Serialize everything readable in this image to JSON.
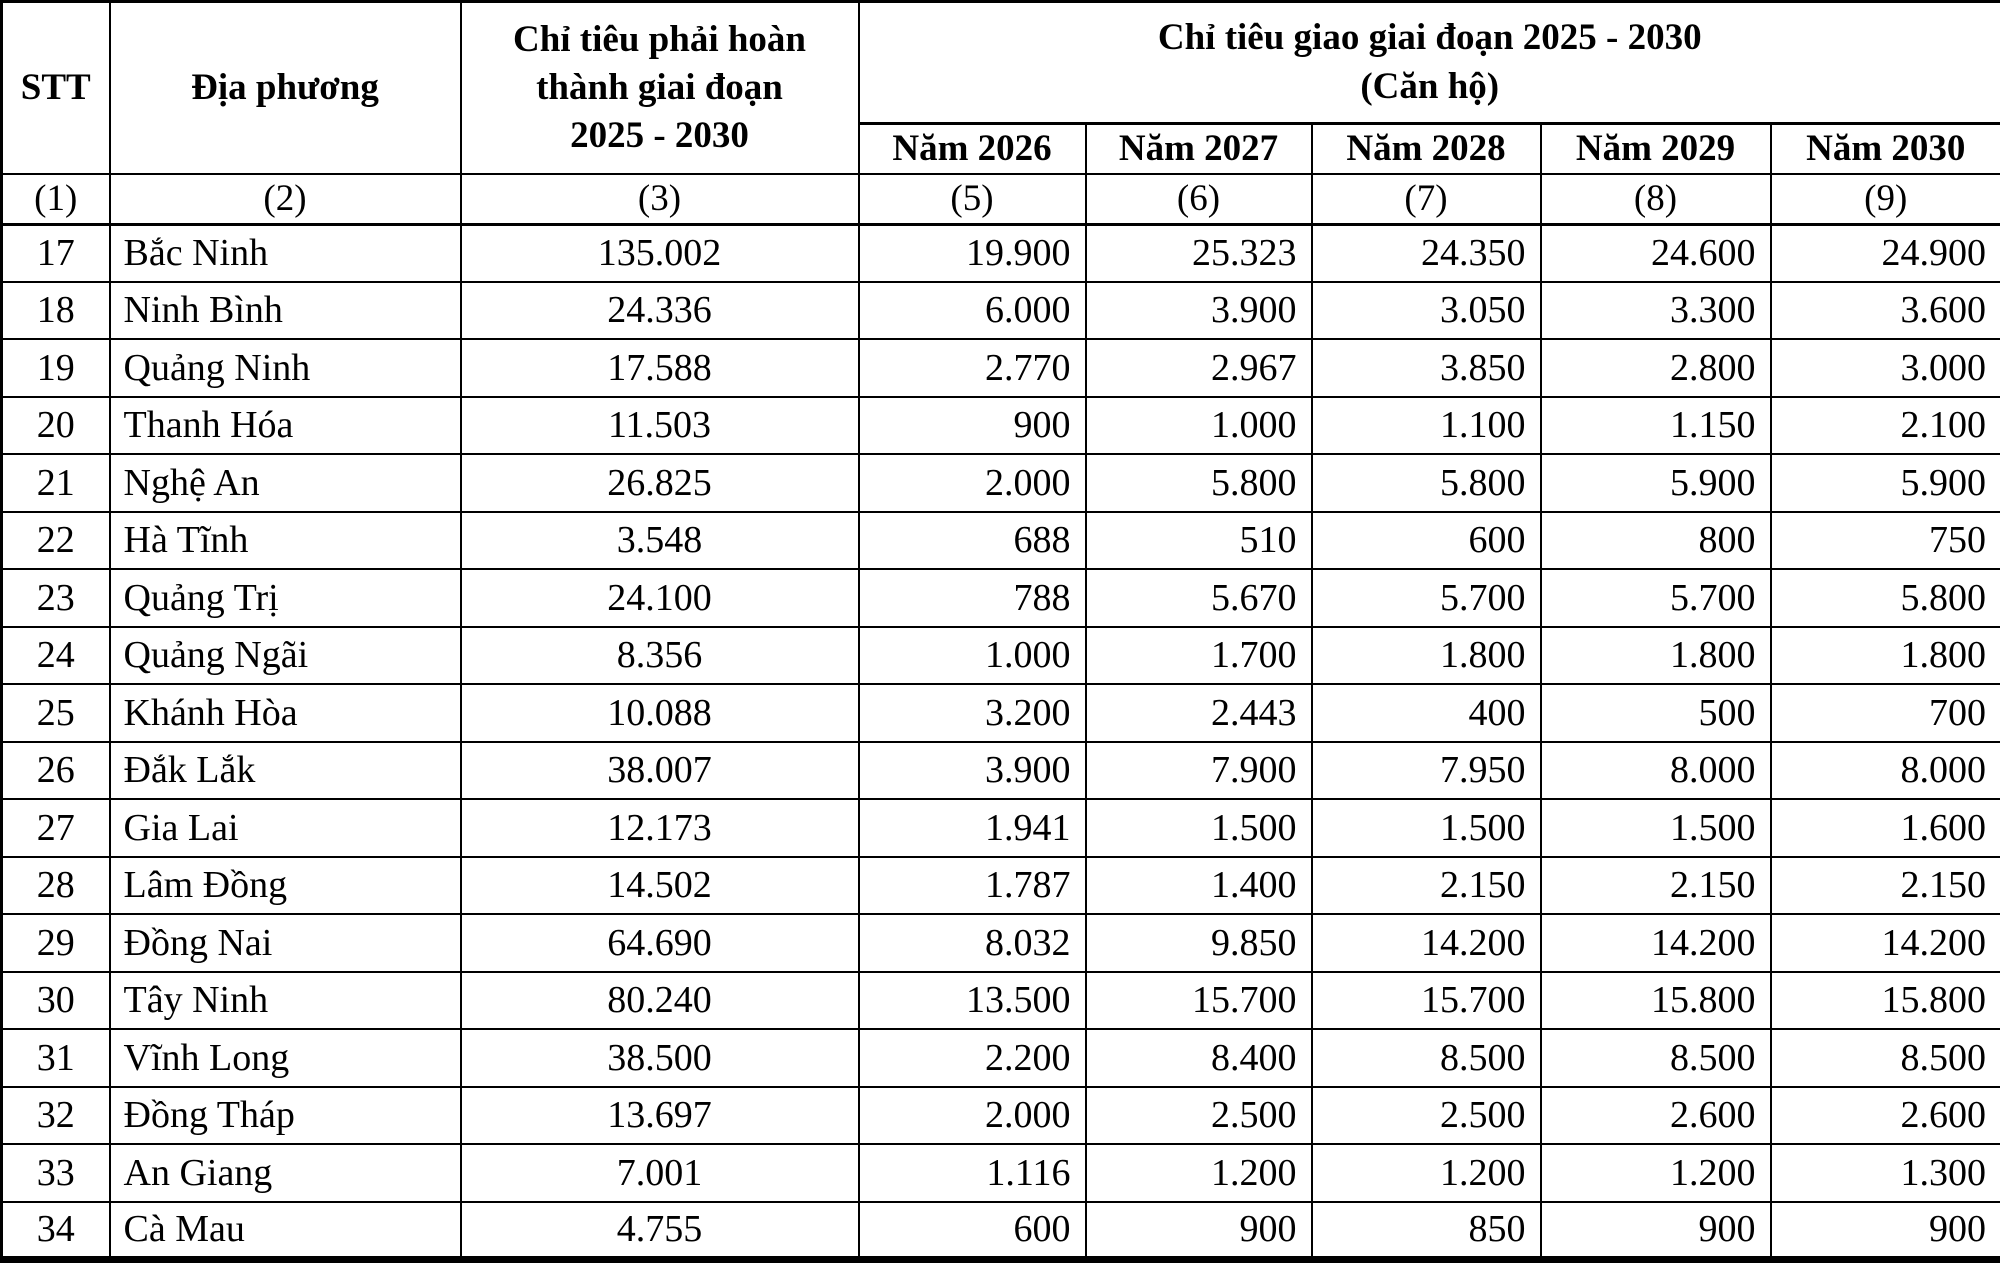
{
  "colors": {
    "border": "#000000",
    "background": "#ffffff",
    "text": "#000000"
  },
  "table": {
    "headers": {
      "stt": "STT",
      "locality": "Địa phương",
      "target_complete_lines": [
        "Chỉ tiêu phải hoàn",
        "thành giai đoạn",
        "2025 - 2030"
      ],
      "target_assigned": "Chỉ tiêu giao giai đoạn 2025 - 2030",
      "target_assigned_unit": "(Căn hộ)",
      "years": [
        "Năm 2026",
        "Năm 2027",
        "Năm 2028",
        "Năm 2029",
        "Năm 2030"
      ],
      "index_row": [
        "(1)",
        "(2)",
        "(3)",
        "(5)",
        "(6)",
        "(7)",
        "(8)",
        "(9)"
      ]
    },
    "rows": [
      {
        "stt": "17",
        "locality": "Bắc Ninh",
        "total": "135.002",
        "values": [
          "19.900",
          "25.323",
          "24.350",
          "24.600",
          "24.900"
        ]
      },
      {
        "stt": "18",
        "locality": "Ninh Bình",
        "total": "24.336",
        "values": [
          "6.000",
          "3.900",
          "3.050",
          "3.300",
          "3.600"
        ]
      },
      {
        "stt": "19",
        "locality": "Quảng Ninh",
        "total": "17.588",
        "values": [
          "2.770",
          "2.967",
          "3.850",
          "2.800",
          "3.000"
        ]
      },
      {
        "stt": "20",
        "locality": "Thanh Hóa",
        "total": "11.503",
        "values": [
          "900",
          "1.000",
          "1.100",
          "1.150",
          "2.100"
        ]
      },
      {
        "stt": "21",
        "locality": "Nghệ An",
        "total": "26.825",
        "values": [
          "2.000",
          "5.800",
          "5.800",
          "5.900",
          "5.900"
        ]
      },
      {
        "stt": "22",
        "locality": "Hà Tĩnh",
        "total": "3.548",
        "values": [
          "688",
          "510",
          "600",
          "800",
          "750"
        ]
      },
      {
        "stt": "23",
        "locality": "Quảng Trị",
        "total": "24.100",
        "values": [
          "788",
          "5.670",
          "5.700",
          "5.700",
          "5.800"
        ]
      },
      {
        "stt": "24",
        "locality": "Quảng Ngãi",
        "total": "8.356",
        "values": [
          "1.000",
          "1.700",
          "1.800",
          "1.800",
          "1.800"
        ]
      },
      {
        "stt": "25",
        "locality": "Khánh Hòa",
        "total": "10.088",
        "values": [
          "3.200",
          "2.443",
          "400",
          "500",
          "700"
        ]
      },
      {
        "stt": "26",
        "locality": "Đắk Lắk",
        "total": "38.007",
        "values": [
          "3.900",
          "7.900",
          "7.950",
          "8.000",
          "8.000"
        ]
      },
      {
        "stt": "27",
        "locality": "Gia Lai",
        "total": "12.173",
        "values": [
          "1.941",
          "1.500",
          "1.500",
          "1.500",
          "1.600"
        ]
      },
      {
        "stt": "28",
        "locality": "Lâm Đồng",
        "total": "14.502",
        "values": [
          "1.787",
          "1.400",
          "2.150",
          "2.150",
          "2.150"
        ]
      },
      {
        "stt": "29",
        "locality": "Đồng Nai",
        "total": "64.690",
        "values": [
          "8.032",
          "9.850",
          "14.200",
          "14.200",
          "14.200"
        ]
      },
      {
        "stt": "30",
        "locality": "Tây Ninh",
        "total": "80.240",
        "values": [
          "13.500",
          "15.700",
          "15.700",
          "15.800",
          "15.800"
        ]
      },
      {
        "stt": "31",
        "locality": "Vĩnh Long",
        "total": "38.500",
        "values": [
          "2.200",
          "8.400",
          "8.500",
          "8.500",
          "8.500"
        ]
      },
      {
        "stt": "32",
        "locality": "Đồng Tháp",
        "total": "13.697",
        "values": [
          "2.000",
          "2.500",
          "2.500",
          "2.600",
          "2.600"
        ]
      },
      {
        "stt": "33",
        "locality": "An Giang",
        "total": "7.001",
        "values": [
          "1.116",
          "1.200",
          "1.200",
          "1.200",
          "1.300"
        ]
      },
      {
        "stt": "34",
        "locality": "Cà Mau",
        "total": "4.755",
        "values": [
          "600",
          "900",
          "850",
          "900",
          "900"
        ]
      }
    ]
  }
}
